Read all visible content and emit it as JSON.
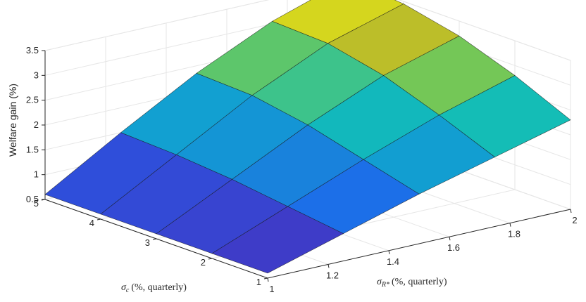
{
  "chart_data": {
    "type": "surface",
    "x_axis": {
      "symbol": "σ",
      "subscript": "R*",
      "unit_text": "(%, quarterly)",
      "ticks": [
        1,
        1.2,
        1.4,
        1.6,
        1.8,
        2
      ],
      "tick_labels": [
        "1",
        "1.2",
        "1.4",
        "1.6",
        "1.8",
        "2"
      ],
      "range": [
        1,
        2
      ]
    },
    "y_axis": {
      "symbol": "σ",
      "subscript": "c",
      "unit_text": "(%, quarterly)",
      "ticks": [
        1,
        2,
        3,
        4,
        5
      ],
      "tick_labels": [
        "1",
        "2",
        "3",
        "4",
        "5"
      ],
      "range": [
        1,
        5
      ]
    },
    "z_axis": {
      "label": "Welfare gain (%)",
      "ticks": [
        0.5,
        1,
        1.5,
        2,
        2.5,
        3,
        3.5
      ],
      "tick_labels": [
        "0.5",
        "1",
        "1.5",
        "2",
        "2.5",
        "3",
        "3.5"
      ],
      "range": [
        0.5,
        3.5
      ]
    },
    "grid": true,
    "colormap": "parula",
    "x": [
      1,
      1.25,
      1.5,
      1.75,
      2
    ],
    "y": [
      1,
      2,
      3,
      4,
      5
    ],
    "z": [
      [
        0.6,
        1.05,
        1.5,
        1.9,
        2.3
      ],
      [
        0.6,
        1.2,
        1.8,
        2.35,
        2.8
      ],
      [
        0.6,
        1.35,
        2.1,
        2.75,
        3.2
      ],
      [
        0.6,
        1.45,
        2.3,
        3.0,
        3.45
      ],
      [
        0.6,
        1.5,
        2.35,
        3.05,
        3.55
      ]
    ]
  }
}
